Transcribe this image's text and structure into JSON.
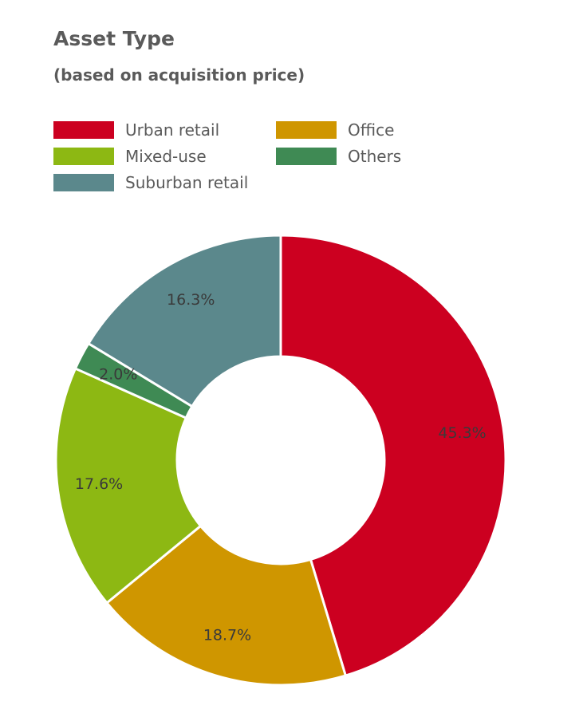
{
  "chart_data": {
    "type": "pie",
    "title": "Asset Type",
    "subtitle": "(based on acquisition price)",
    "slices": [
      {
        "label": "Urban retail",
        "value": 45.3,
        "display": "45.3%",
        "color": "#cc0020"
      },
      {
        "label": "Office",
        "value": 18.7,
        "display": "18.7%",
        "color": "#cf9600"
      },
      {
        "label": "Mixed-use",
        "value": 17.6,
        "display": "17.6%",
        "color": "#8db813"
      },
      {
        "label": "Others",
        "value": 2.0,
        "display": "2.0%",
        "color": "#3f8a54"
      },
      {
        "label": "Suburban retail",
        "value": 16.3,
        "display": "16.3%",
        "color": "#5b888c"
      }
    ],
    "legend": [
      {
        "label": "Urban retail",
        "color": "#cc0020"
      },
      {
        "label": "Office",
        "color": "#cf9600"
      },
      {
        "label": "Mixed-use",
        "color": "#8db813"
      },
      {
        "label": "Others",
        "color": "#3f8a54"
      },
      {
        "label": "Suburban retail",
        "color": "#5b888c"
      }
    ],
    "legend_placement": "top-left",
    "donut": true
  }
}
